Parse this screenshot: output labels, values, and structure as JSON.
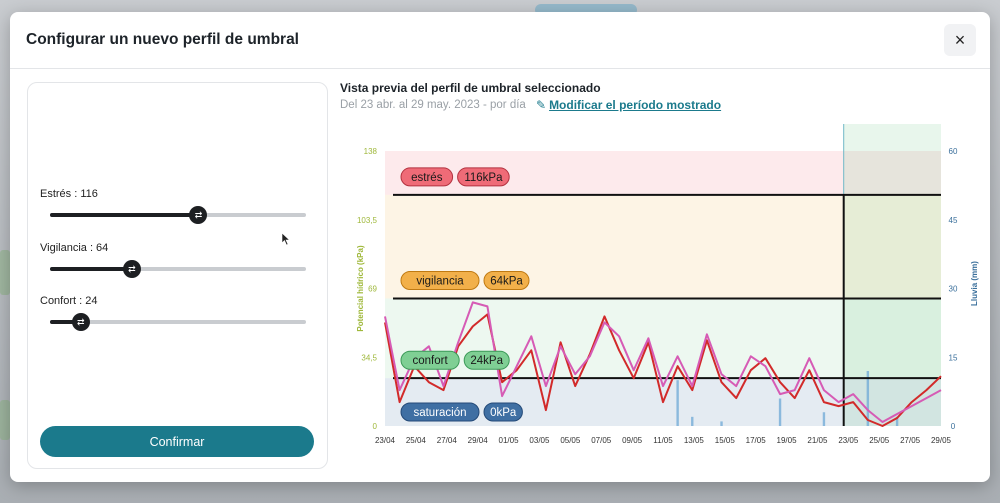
{
  "modal": {
    "title": "Configurar un nuevo perfil de umbral",
    "close_icon": "×"
  },
  "sliders": [
    {
      "label": "Estrés : 116",
      "value": 116,
      "max": 200
    },
    {
      "label": "Vigilancia : 64",
      "value": 64,
      "max": 200
    },
    {
      "label": "Confort : 24",
      "value": 24,
      "max": 200
    }
  ],
  "confirm_label": "Confirmar",
  "preview": {
    "title": "Vista previa del perfil de umbral seleccionado",
    "subtitle": "Del 23 abr. al 29 may. 2023 - por día",
    "edit_label": "Modificar el período mostrado"
  },
  "colors": {
    "accent": "#1b7a8c",
    "estres": "#ef6b77",
    "vigilancia": "#f2b04a",
    "confort": "#7fcf94",
    "saturacion": "#3f6fa3",
    "line1": "#d22a2a",
    "line2": "#d65bb5"
  },
  "chart_data": {
    "type": "line",
    "left_axis": {
      "label": "Potencial hídrico (kPa)",
      "ticks": [
        "0",
        "34,5",
        "69",
        "103,5",
        "138"
      ],
      "range": [
        0,
        138
      ]
    },
    "right_axis": {
      "label": "Lluvia (mm)",
      "ticks": [
        "0",
        "15",
        "30",
        "45",
        "60"
      ],
      "range": [
        0,
        60
      ]
    },
    "x_labels": [
      "23/04",
      "25/04",
      "27/04",
      "29/04",
      "01/05",
      "03/05",
      "05/05",
      "07/05",
      "09/05",
      "11/05",
      "13/05",
      "15/05",
      "17/05",
      "19/05",
      "21/05",
      "23/05",
      "25/05",
      "27/05",
      "29/05"
    ],
    "zones": [
      {
        "name": "estrés",
        "value": "116kPa"
      },
      {
        "name": "vigilancia",
        "value": "64kPa"
      },
      {
        "name": "confort",
        "value": "24kPa"
      },
      {
        "name": "saturación",
        "value": "0kPa"
      }
    ],
    "thresholds": [
      116,
      64,
      24
    ],
    "series": [
      {
        "values": [
          52,
          12,
          30,
          22,
          18,
          40,
          50,
          56,
          22,
          28,
          38,
          8,
          42,
          20,
          36,
          55,
          38,
          24,
          42,
          12,
          30,
          18,
          43,
          22,
          14,
          28,
          34,
          22,
          14,
          28,
          12,
          10,
          12,
          3,
          0,
          4,
          12,
          18,
          25
        ]
      },
      {
        "values": [
          55,
          18,
          34,
          40,
          20,
          42,
          62,
          60,
          15,
          30,
          45,
          20,
          40,
          26,
          35,
          52,
          45,
          28,
          44,
          20,
          35,
          20,
          46,
          26,
          20,
          35,
          30,
          16,
          18,
          34,
          18,
          12,
          16,
          8,
          2,
          6,
          10,
          14,
          18
        ]
      }
    ],
    "rain": [
      {
        "index": 20,
        "mm": 10
      },
      {
        "index": 21,
        "mm": 2
      },
      {
        "index": 23,
        "mm": 1
      },
      {
        "index": 27,
        "mm": 6
      },
      {
        "index": 30,
        "mm": 3
      },
      {
        "index": 33,
        "mm": 12
      },
      {
        "index": 35,
        "mm": 2
      }
    ]
  }
}
